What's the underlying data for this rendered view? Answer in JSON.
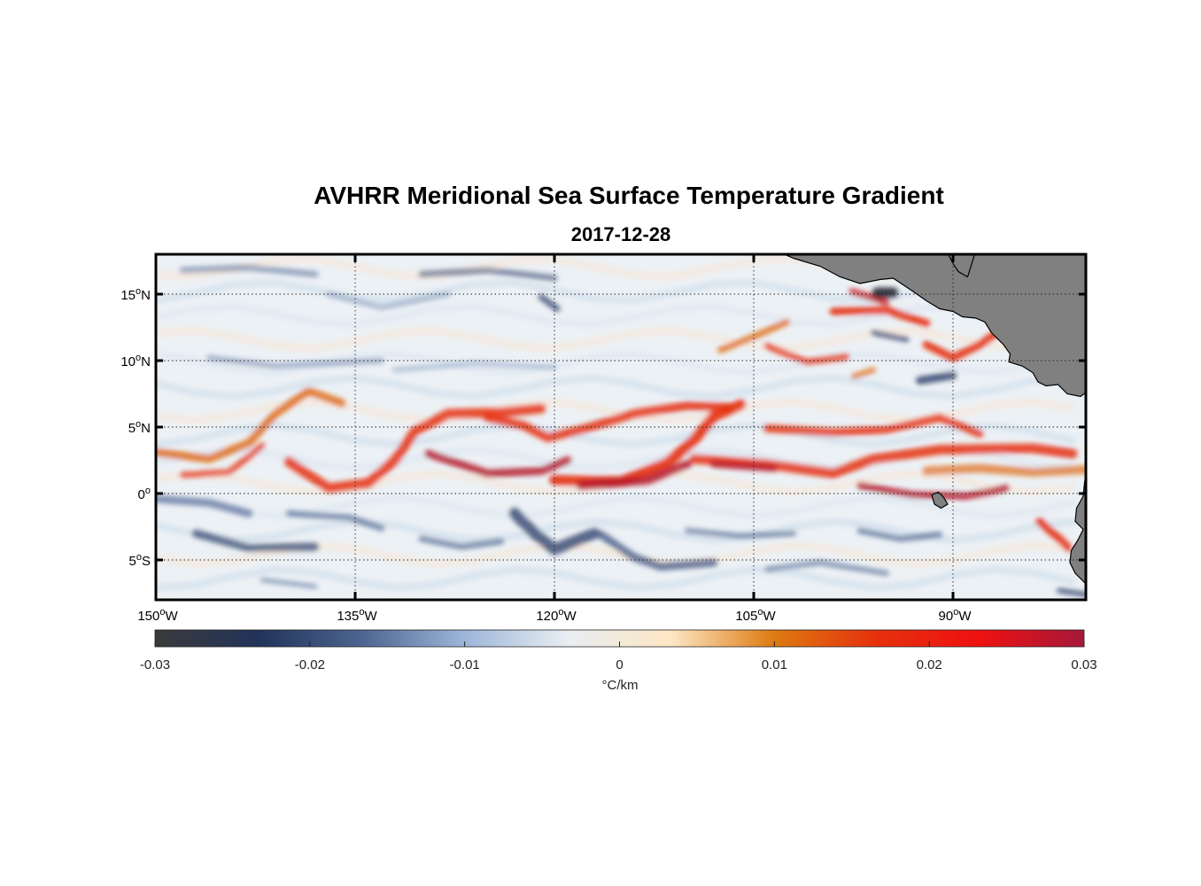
{
  "title": "AVHRR Meridional Sea Surface Temperature Gradient",
  "subtitle": "2017-12-28",
  "map": {
    "lon_range": [
      -150,
      -80
    ],
    "lat_range": [
      -8,
      18
    ],
    "x_ticks": [
      {
        "deg": "150",
        "hem": "W",
        "value": -150
      },
      {
        "deg": "135",
        "hem": "W",
        "value": -135
      },
      {
        "deg": "120",
        "hem": "W",
        "value": -120
      },
      {
        "deg": "105",
        "hem": "W",
        "value": -105
      },
      {
        "deg": "90",
        "hem": "W",
        "value": -90
      }
    ],
    "y_ticks": [
      {
        "deg": "15",
        "hem": "N",
        "value": 15
      },
      {
        "deg": "10",
        "hem": "N",
        "value": 10
      },
      {
        "deg": "5",
        "hem": "N",
        "value": 5
      },
      {
        "deg": "0",
        "hem": "",
        "value": 0
      },
      {
        "deg": "5",
        "hem": "S",
        "value": -5
      }
    ],
    "grid": true,
    "land_color": "#808080",
    "degree_symbol": "o"
  },
  "colorbar": {
    "range": [
      -0.03,
      0.03
    ],
    "ticks": [
      "-0.03",
      "-0.02",
      "-0.01",
      "0",
      "0.01",
      "0.02",
      "0.03"
    ],
    "unit_label": "°C/km",
    "colors": [
      "#3a3a3a",
      "#22335a",
      "#4c6590",
      "#9db6d9",
      "#e8eef2",
      "#fde6c4",
      "#dd7a10",
      "#e6300c",
      "#ee1111",
      "#a5183a"
    ]
  }
}
